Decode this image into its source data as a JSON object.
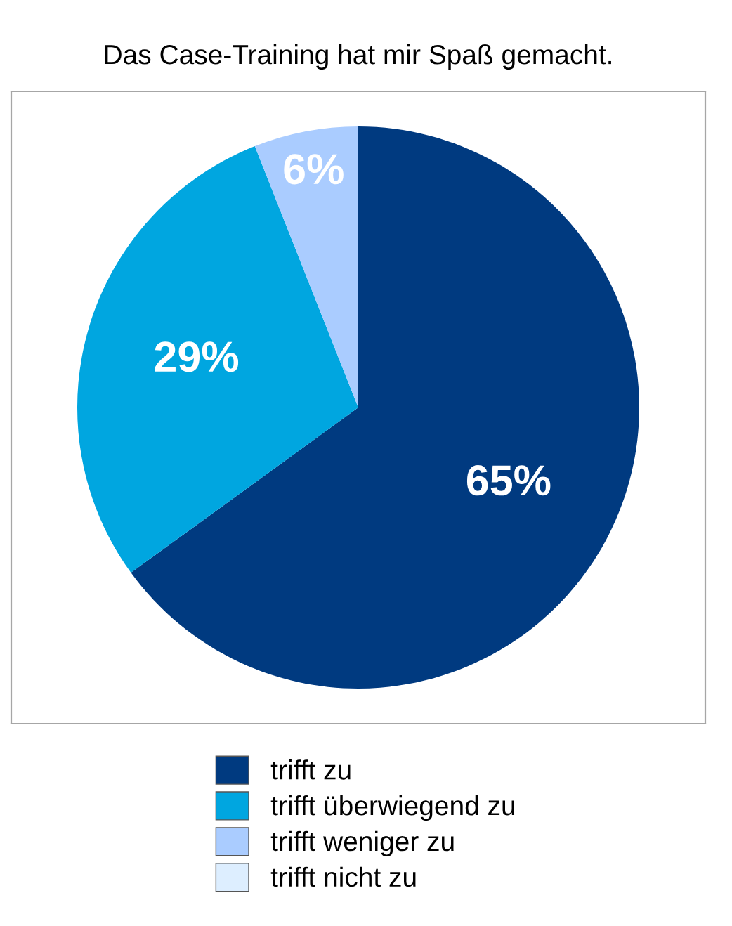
{
  "chart_data": {
    "type": "pie",
    "title": "Das Case-Training hat mir Spaß gemacht.",
    "categories": [
      "trifft zu",
      "trifft überwiegend zu",
      "trifft weniger zu",
      "trifft nicht zu"
    ],
    "values": [
      65,
      29,
      6,
      0
    ],
    "colors": [
      "#003a80",
      "#00a6e0",
      "#aaccff",
      "#ddeeff"
    ],
    "value_labels": [
      "65%",
      "29%",
      "6%",
      null
    ],
    "legend": "bottom"
  }
}
